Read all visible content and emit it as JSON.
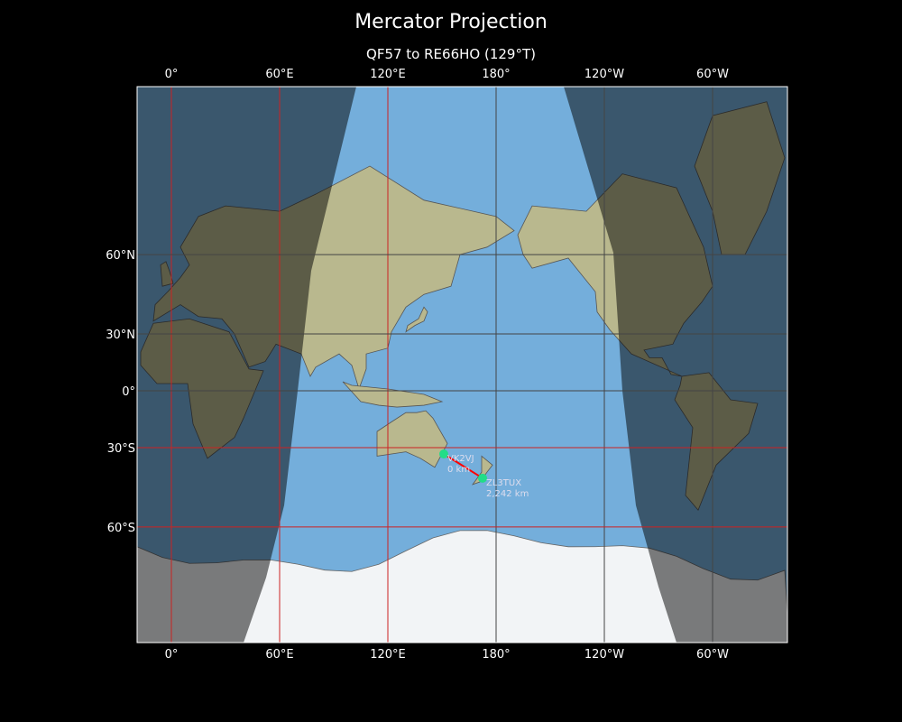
{
  "title": "Mercator Projection",
  "subtitle": "QF57 to RE66HO (129°T)",
  "x_ticks": [
    {
      "lon": 0,
      "label": "0°"
    },
    {
      "lon": 60,
      "label": "60°E"
    },
    {
      "lon": 120,
      "label": "120°E"
    },
    {
      "lon": 180,
      "label": "180°"
    },
    {
      "lon": 240,
      "label": "120°W"
    },
    {
      "lon": 300,
      "label": "60°W"
    }
  ],
  "y_ticks": [
    {
      "lat": 60,
      "label": "60°N"
    },
    {
      "lat": 30,
      "label": "30°N"
    },
    {
      "lat": 0,
      "label": "0°"
    },
    {
      "lat": -30,
      "label": "30°S"
    },
    {
      "lat": -60,
      "label": "60°S"
    }
  ],
  "gridline_colors": {
    "red": "#cc2222",
    "dark": "#444444"
  },
  "path": {
    "color": "#ff0000",
    "from": {
      "call": "VK2VJ",
      "distance": "0 km",
      "lon": 151,
      "lat": -33
    },
    "to": {
      "call": "ZL3TUX",
      "distance": "2,242 km",
      "lon": 172.5,
      "lat": -43.5
    }
  },
  "marker_color": "#22dd88",
  "colors": {
    "ocean": "#74aedb",
    "land": "#b9b88e",
    "ice": "#f2f4f6",
    "night": "rgba(0,0,0,0.5)"
  }
}
